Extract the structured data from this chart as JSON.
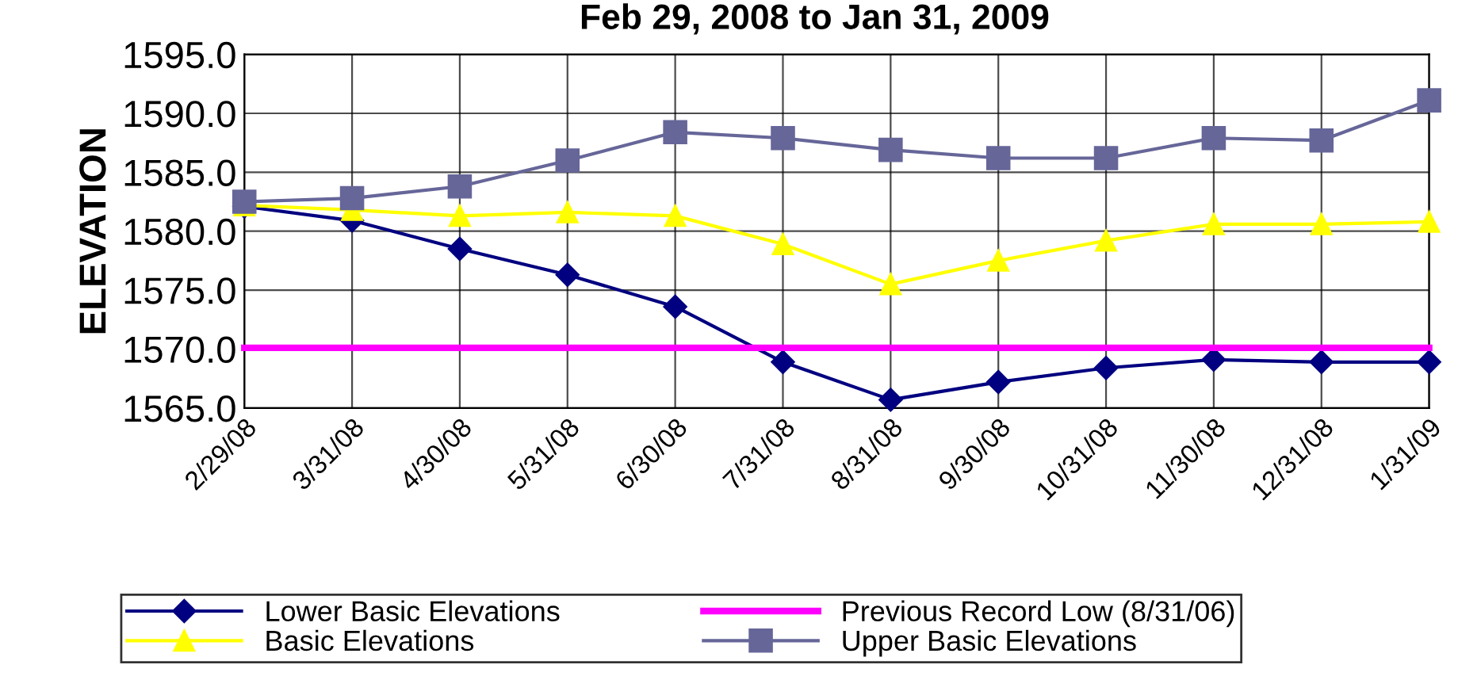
{
  "chart_data": {
    "type": "line",
    "title": "Feb 29, 2008 to Jan 31, 2009",
    "ylabel": "ELEVATION",
    "categories": [
      "2/29/08",
      "3/31/08",
      "4/30/08",
      "5/31/08",
      "6/30/08",
      "7/31/08",
      "8/31/08",
      "9/30/08",
      "10/31/08",
      "11/30/08",
      "12/31/08",
      "1/31/09"
    ],
    "series": [
      {
        "name": "Lower Basic Elevations",
        "color": "#000080",
        "marker": "diamond",
        "values": [
          1582.1,
          1580.9,
          1578.5,
          1576.3,
          1573.6,
          1568.9,
          1565.7,
          1567.2,
          1568.4,
          1569.1,
          1568.9,
          1568.9
        ]
      },
      {
        "name": "Basic Elevations",
        "color": "#ffff00",
        "marker": "triangle",
        "values": [
          1582.2,
          1581.8,
          1581.3,
          1581.6,
          1581.3,
          1578.9,
          1575.5,
          1577.5,
          1579.2,
          1580.6,
          1580.6,
          1580.8
        ]
      },
      {
        "name": "Previous Record Low (8/31/06)",
        "color": "#ff00ff",
        "marker": "none",
        "values": [
          1570.1,
          1570.1,
          1570.1,
          1570.1,
          1570.1,
          1570.1,
          1570.1,
          1570.1,
          1570.1,
          1570.1,
          1570.1,
          1570.1
        ]
      },
      {
        "name": "Upper Basic Elevations",
        "color": "#666699",
        "marker": "square",
        "values": [
          1582.5,
          1582.8,
          1583.8,
          1586.0,
          1588.4,
          1587.9,
          1586.9,
          1586.2,
          1586.2,
          1587.9,
          1587.7,
          1591.1
        ]
      }
    ],
    "ylim": [
      1565.0,
      1595.0
    ],
    "yticks": [
      {
        "value": 1565,
        "label": "1565.0"
      },
      {
        "value": 1570,
        "label": "1570.0"
      },
      {
        "value": 1575,
        "label": "1575.0"
      },
      {
        "value": 1580,
        "label": "1580.0"
      },
      {
        "value": 1585,
        "label": "1585.0"
      },
      {
        "value": 1590,
        "label": "1590.0"
      },
      {
        "value": 1595,
        "label": "1595.0"
      }
    ],
    "grid": true,
    "legend": "bottom",
    "line_style": "solid"
  }
}
